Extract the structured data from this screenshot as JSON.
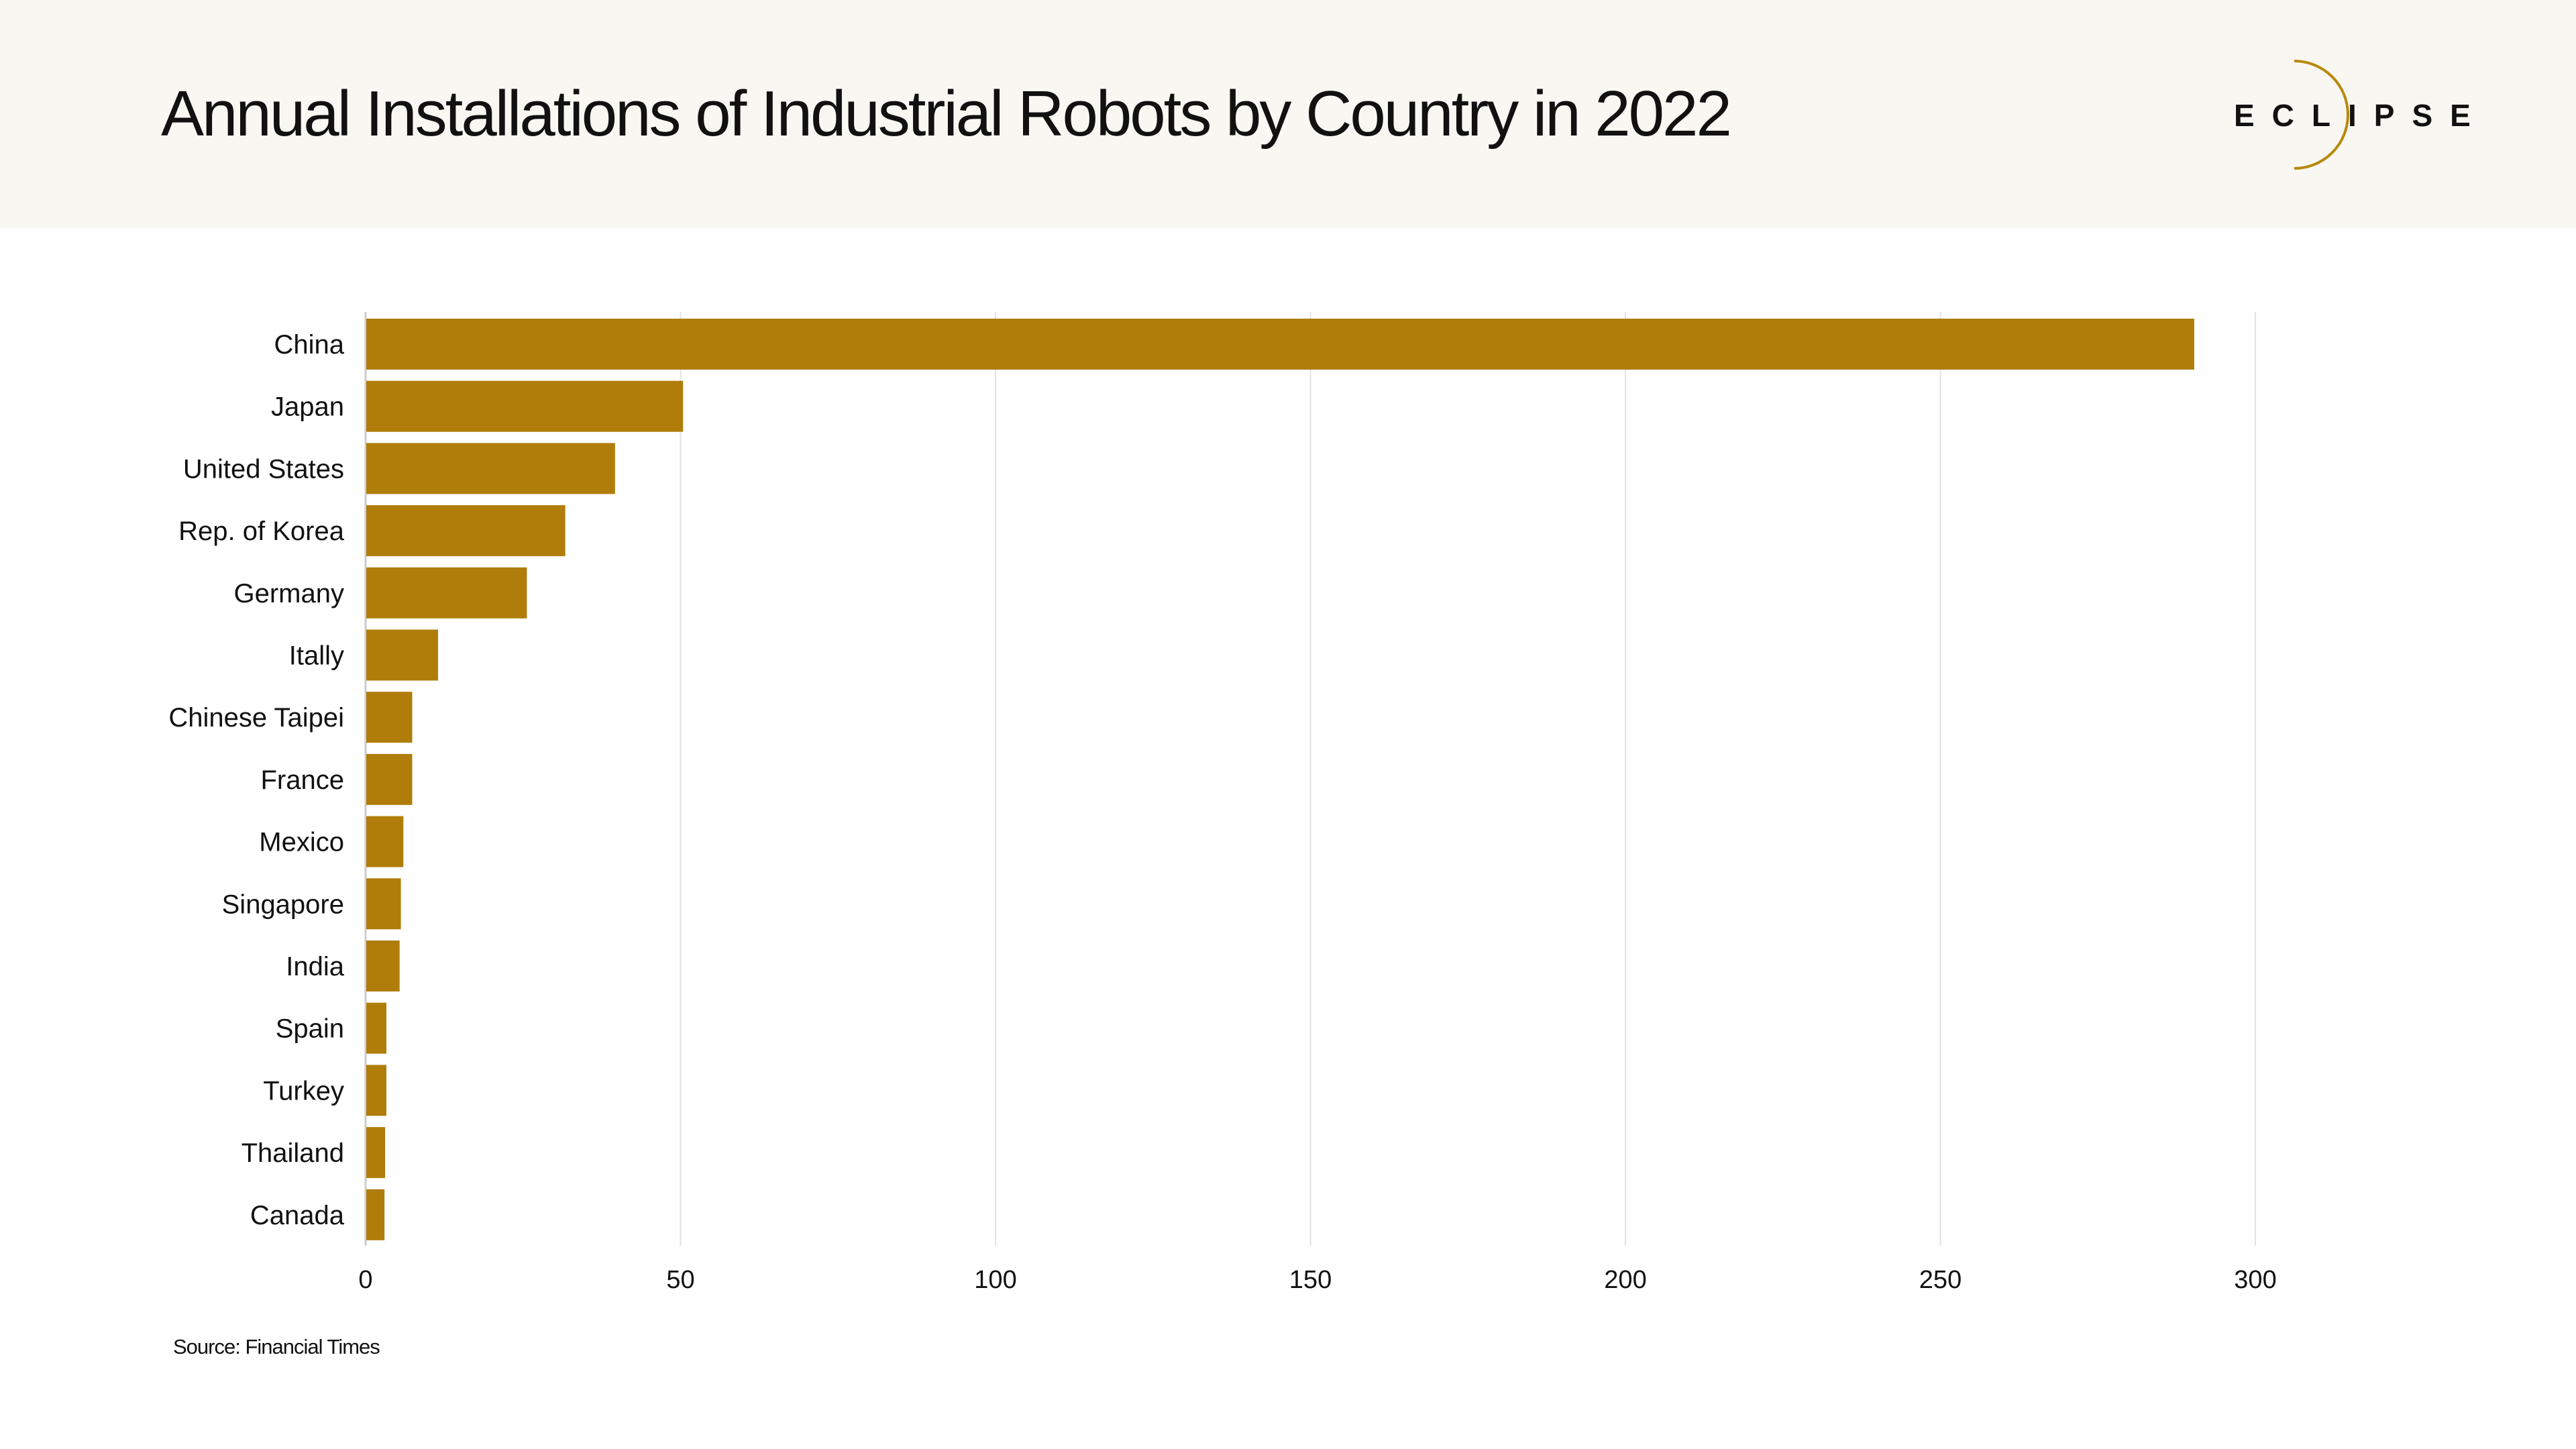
{
  "header": {
    "title": "Annual Installations of Industrial Robots by Country in 2022",
    "logo_text": "ECLIPSE"
  },
  "footer": {
    "source": "Source: Financial Times"
  },
  "colors": {
    "bar": "#b07d0a",
    "grid": "#e2e2e2",
    "axis": "#cccccc",
    "text": "#111111",
    "header_bg": "#f8f7f2",
    "logo_arc": "#b8890b"
  },
  "chart_data": {
    "type": "bar",
    "orientation": "horizontal",
    "categories": [
      "China",
      "Japan",
      "United States",
      "Rep. of Korea",
      "Germany",
      "Itally",
      "Chinese Taipei",
      "France",
      "Mexico",
      "Singapore",
      "India",
      "Spain",
      "Turkey",
      "Thailand",
      "Canada"
    ],
    "values": [
      290.3,
      50.4,
      39.6,
      31.7,
      25.6,
      11.5,
      7.4,
      7.4,
      6.0,
      5.6,
      5.4,
      3.3,
      3.3,
      3.1,
      3.0
    ],
    "xlim": [
      0,
      300
    ],
    "xticks": [
      "0",
      "50",
      "100",
      "150",
      "200",
      "250",
      "300"
    ],
    "grid": true,
    "legend": "none"
  }
}
